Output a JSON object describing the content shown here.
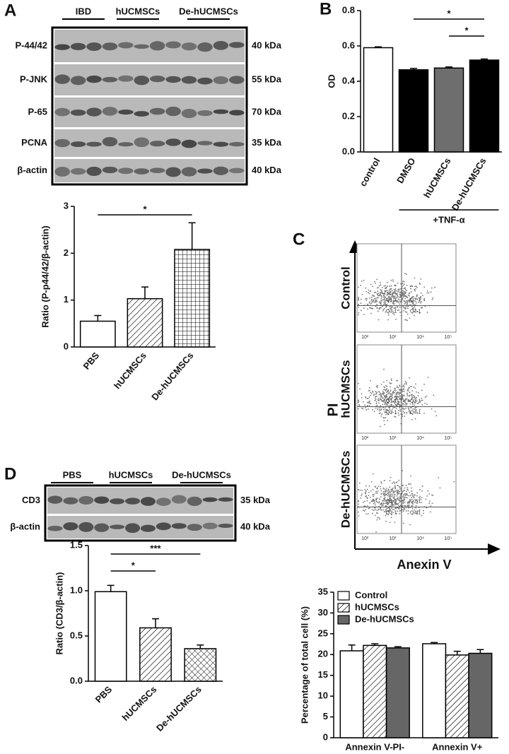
{
  "panel_labels": [
    "A",
    "B",
    "C",
    "D"
  ],
  "blot_a": {
    "groups": [
      "IBD",
      "hUCMSCs",
      "De-hUCMSCs"
    ],
    "rows": [
      {
        "label": "P-44/42",
        "size": "40 kDa"
      },
      {
        "label": "P-JNK",
        "size": "55 kDa"
      },
      {
        "label": "P-65",
        "size": "70 kDa"
      },
      {
        "label": "PCNA",
        "size": "35 kDa"
      },
      {
        "label": "β-actin",
        "size": "40 kDa"
      }
    ]
  },
  "blot_d": {
    "groups": [
      "PBS",
      "hUCMSCs",
      "De-hUCMSCs"
    ],
    "rows": [
      {
        "label": "CD3",
        "size": "35 kDa"
      },
      {
        "label": "β-actin",
        "size": "40 kDa"
      }
    ]
  },
  "flow_c": {
    "y_label": "PI",
    "x_label": "Anexin V",
    "samples": [
      "Control",
      "hUCMSCs",
      "De-hUCMSCs"
    ],
    "quadrants": [
      "Q1-1",
      "Q2-1",
      "Q3-1",
      "Q4-1"
    ],
    "axis_ticks": [
      "10²",
      "10³",
      "10⁴",
      "10⁵"
    ]
  },
  "chart_data": [
    {
      "type": "bar",
      "y_label": "Ratio (P-p44/42/β-actin)",
      "categories": [
        "PBS",
        "hUCMSCs",
        "De-hUCMSCs"
      ],
      "values": [
        0.55,
        1.03,
        2.08
      ],
      "errors": [
        0.12,
        0.25,
        0.57
      ],
      "colors": [
        "#ffffff",
        "#ffffff",
        "#ffffff"
      ],
      "patterns": [
        "none",
        "hatch",
        "grid"
      ],
      "ylim": [
        0,
        3
      ],
      "yticks": [
        0,
        1,
        2,
        3
      ],
      "significance": [
        {
          "label": "*",
          "between": [
            "PBS",
            "De-hUCMSCs"
          ]
        }
      ]
    },
    {
      "type": "bar",
      "y_label": "OD",
      "categories": [
        "control",
        "DMSO",
        "hUCMSCs",
        "De-hUCMSCs"
      ],
      "values": [
        0.59,
        0.465,
        0.475,
        0.52
      ],
      "errors": [
        0.005,
        0.008,
        0.006,
        0.006
      ],
      "colors": [
        "#ffffff",
        "#000000",
        "#6e6e6e",
        "#000000"
      ],
      "patterns": [
        "none",
        "none",
        "none",
        "none"
      ],
      "ylim": [
        0,
        0.8
      ],
      "yticks": [
        {
          "value": 0,
          "label": "0.0"
        },
        0.2,
        0.4,
        0.6,
        0.8
      ],
      "significance": [
        {
          "label": "*",
          "between": [
            "DMSO",
            "De-hUCMSCs"
          ]
        },
        {
          "label": "*",
          "between": [
            "hUCMSCs",
            "De-hUCMSCs"
          ]
        }
      ],
      "annotations": [
        {
          "text": "+TNF-α",
          "between": [
            "DMSO",
            "De-hUCMSCs"
          ]
        }
      ]
    },
    {
      "type": "bar",
      "y_label": "Ratio (CD3/β-actin)",
      "categories": [
        "PBS",
        "hUCMSCs",
        "De-hUCMSCs"
      ],
      "values": [
        0.99,
        0.59,
        0.36
      ],
      "errors": [
        0.07,
        0.1,
        0.04
      ],
      "colors": [
        "#ffffff",
        "#ffffff",
        "#ffffff"
      ],
      "patterns": [
        "none",
        "hatch",
        "cross"
      ],
      "ylim": [
        0,
        1.5
      ],
      "yticks": [
        {
          "value": 0,
          "label": "0.0"
        },
        0.5,
        {
          "value": 1,
          "label": "1.0"
        },
        1.5
      ],
      "significance": [
        {
          "label": "***",
          "between": [
            "PBS",
            "De-hUCMSCs"
          ]
        },
        {
          "label": "*",
          "between": [
            "PBS",
            "hUCMSCs"
          ]
        }
      ]
    },
    {
      "type": "bar",
      "y_label": "Percentage of total cell (%)",
      "categories": [
        "Annexin V-PI-",
        "Annexin V+"
      ],
      "series": [
        {
          "name": "Control",
          "color": "#ffffff",
          "pattern": "none",
          "values": [
            20.9,
            22.6
          ],
          "errors": [
            1.4,
            0.3
          ]
        },
        {
          "name": "hUCMSCs",
          "color": "#ffffff",
          "pattern": "hatch",
          "values": [
            22.2,
            19.9
          ],
          "errors": [
            0.4,
            0.9
          ]
        },
        {
          "name": "De-hUCMSCs",
          "color": "#666666",
          "pattern": "none",
          "values": [
            21.6,
            20.3
          ],
          "errors": [
            0.3,
            0.9
          ]
        }
      ],
      "ylim": [
        0,
        35
      ],
      "yticks": [
        0,
        5,
        10,
        15,
        20,
        25,
        30,
        35
      ],
      "legend": "top-left"
    }
  ]
}
